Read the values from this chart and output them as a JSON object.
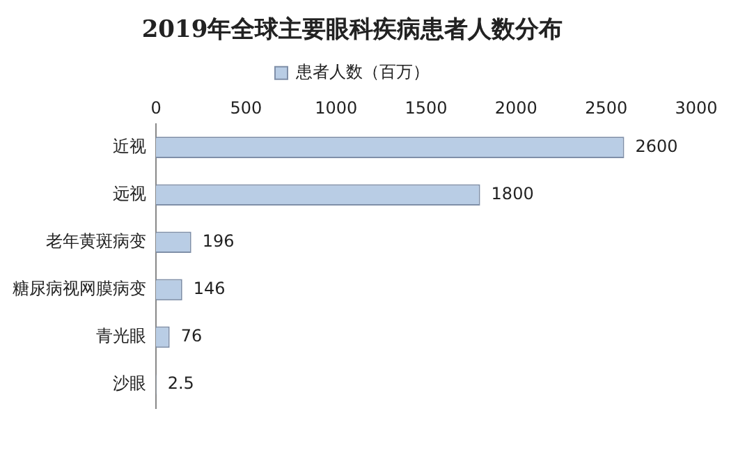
{
  "chart_data": {
    "type": "bar",
    "orientation": "horizontal",
    "title": "2019年全球主要眼科疾病患者人数分布",
    "categories": [
      "近视",
      "远视",
      "老年黄斑病变",
      "糖尿病视网膜病变",
      "青光眼",
      "沙眼"
    ],
    "series": [
      {
        "name": "患者人数（百万）",
        "color": "#b9cde5",
        "values": [
          2600,
          1800,
          196,
          146,
          76,
          2.5
        ]
      }
    ],
    "xlim": [
      0,
      3000
    ],
    "xticks": [
      0,
      500,
      1000,
      1500,
      2000,
      2500,
      3000
    ],
    "grid": false,
    "legend": "top",
    "data_labels": true
  }
}
